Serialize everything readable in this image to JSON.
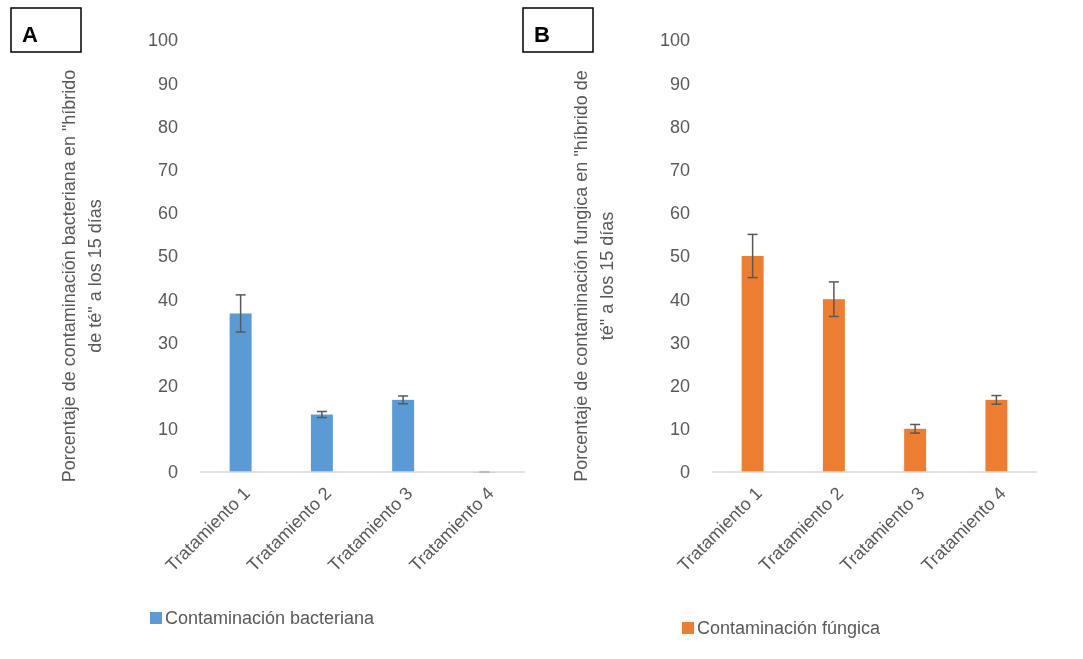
{
  "chart_data": [
    {
      "type": "bar",
      "title": "A",
      "ylabel": "Porcentaje de contaminación bacteriana en \"híbrido de té\" a los 15 días",
      "categories": [
        "Tratamiento 1",
        "Tratamiento 2",
        "Tratamiento 3",
        "Tratamiento 4"
      ],
      "series": [
        {
          "name": "Contaminación bacteriana",
          "color": "#5b9bd5",
          "values": [
            36.7,
            13.3,
            16.7,
            0
          ],
          "errors": [
            4.3,
            0.7,
            0.9,
            0
          ]
        }
      ],
      "ylim": [
        0,
        100
      ],
      "yticks": [
        0,
        10,
        20,
        30,
        40,
        50,
        60,
        70,
        80,
        90,
        100
      ],
      "grid": false,
      "legend": "bottom"
    },
    {
      "type": "bar",
      "title": "B",
      "ylabel": "Porcentaje de contaminación fungica en \"híbrido de té\" a los 15 días",
      "categories": [
        "Tratamiento 1",
        "Tratamiento 2",
        "Tratamiento 3",
        "Tratamiento 4"
      ],
      "series": [
        {
          "name": "Contaminación fúngica",
          "color": "#ed7d31",
          "values": [
            50,
            40,
            10,
            16.7
          ],
          "errors": [
            5,
            4,
            1,
            1
          ]
        }
      ],
      "ylim": [
        0,
        100
      ],
      "yticks": [
        0,
        10,
        20,
        30,
        40,
        50,
        60,
        70,
        80,
        90,
        100
      ],
      "grid": false,
      "legend": "bottom"
    }
  ]
}
